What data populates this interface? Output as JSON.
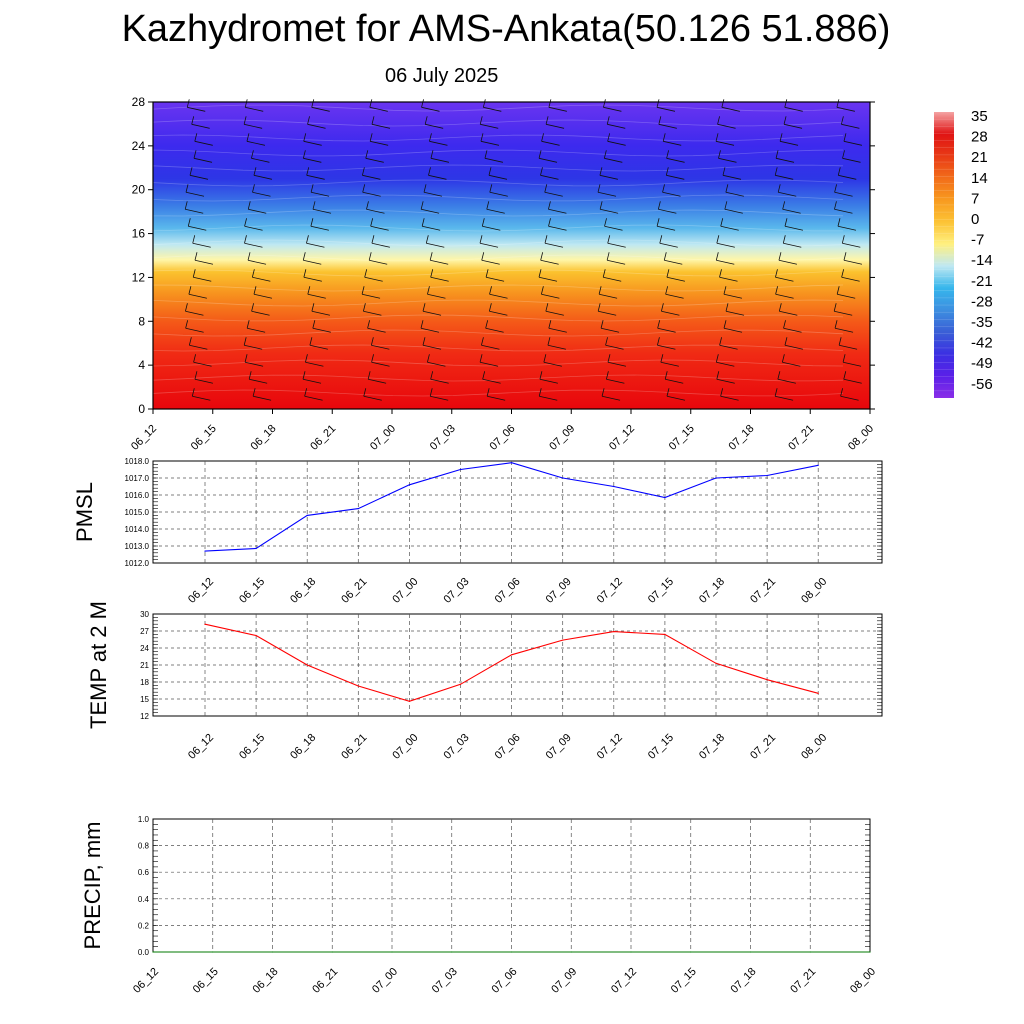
{
  "title": "Kazhydromet for AMS-Ankata(50.126 51.886)",
  "subtitle": "06 July 2025",
  "chart_data": [
    {
      "type": "heatmap",
      "name": "temperature-cross-section",
      "y_ticks": [
        0,
        4,
        8,
        12,
        16,
        20,
        24,
        28
      ],
      "ylim": [
        0,
        28
      ],
      "x_labels": [
        "06_12",
        "06_15",
        "06_18",
        "06_21",
        "07_00",
        "07_03",
        "07_06",
        "07_09",
        "07_12",
        "07_15",
        "07_18",
        "07_21",
        "08_00"
      ],
      "colorbar": {
        "labels": [
          "35",
          "28",
          "21",
          "14",
          "7",
          "0",
          "-7",
          "-14",
          "-21",
          "-28",
          "-35",
          "-42",
          "-49",
          "-56"
        ],
        "colors": [
          "#f4a3a3",
          "#e01414",
          "#e83a16",
          "#f26d1a",
          "#f89a1f",
          "#fcc335",
          "#fff080",
          "#bfe8f2",
          "#36b6ec",
          "#3d8fe0",
          "#3a5fd6",
          "#3b30e2",
          "#5a20e8",
          "#8a2ee8"
        ]
      },
      "height_profile": [
        {
          "h": 0,
          "color": "#e8060c"
        },
        {
          "h": 5,
          "color": "#f02a14"
        },
        {
          "h": 8,
          "color": "#f45a18"
        },
        {
          "h": 10.5,
          "color": "#f7921e"
        },
        {
          "h": 12.5,
          "color": "#fbc22e"
        },
        {
          "h": 13.6,
          "color": "#fff6a8"
        },
        {
          "h": 15,
          "color": "#bfe8f2"
        },
        {
          "h": 16.5,
          "color": "#5ab8ec"
        },
        {
          "h": 18.5,
          "color": "#3b7ee6"
        },
        {
          "h": 21,
          "color": "#2d36e6"
        },
        {
          "h": 24,
          "color": "#3d2aee"
        },
        {
          "h": 28,
          "color": "#6a34f0"
        }
      ]
    },
    {
      "type": "line",
      "ylabel": "PMSL",
      "categories": [
        "06_12",
        "06_15",
        "06_18",
        "06_21",
        "07_00",
        "07_03",
        "07_06",
        "07_09",
        "07_12",
        "07_15",
        "07_18",
        "07_21",
        "08_00"
      ],
      "y_ticks": [
        "1012.0",
        "1013.0",
        "1014.0",
        "1015.0",
        "1016.0",
        "1017.0",
        "1018.0"
      ],
      "ylim": [
        1012,
        1018
      ],
      "color": "#0000ff",
      "values": [
        1012.7,
        1012.85,
        1014.8,
        1015.2,
        1016.6,
        1017.5,
        1017.9,
        1017.0,
        1016.5,
        1015.85,
        1017.0,
        1017.15,
        1017.75
      ]
    },
    {
      "type": "line",
      "ylabel": "TEMP at 2 M",
      "categories": [
        "06_12",
        "06_15",
        "06_18",
        "06_21",
        "07_00",
        "07_03",
        "07_06",
        "07_09",
        "07_12",
        "07_15",
        "07_18",
        "07_21",
        "08_00"
      ],
      "y_ticks": [
        "12",
        "15",
        "18",
        "21",
        "24",
        "27",
        "30"
      ],
      "ylim": [
        12,
        30
      ],
      "color": "#ff0000",
      "values": [
        28.2,
        26.2,
        21.0,
        17.3,
        14.6,
        17.6,
        22.8,
        25.4,
        26.9,
        26.4,
        21.3,
        18.4,
        16.0
      ]
    },
    {
      "type": "line",
      "ylabel": "PRECIP, mm",
      "categories": [
        "06_12",
        "06_15",
        "06_18",
        "06_21",
        "07_00",
        "07_03",
        "07_06",
        "07_09",
        "07_12",
        "07_15",
        "07_18",
        "07_21",
        "08_00"
      ],
      "y_ticks": [
        "0.0",
        "0.2",
        "0.4",
        "0.6",
        "0.8",
        "1.0"
      ],
      "ylim": [
        0,
        1
      ],
      "color": "#007a00",
      "values": [
        0,
        0,
        0,
        0,
        0,
        0,
        0,
        0,
        0,
        0,
        0,
        0,
        0
      ]
    }
  ]
}
